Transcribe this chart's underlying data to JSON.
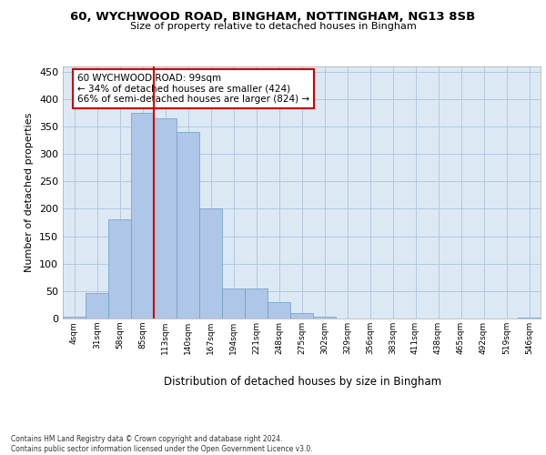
{
  "title_line1": "60, WYCHWOOD ROAD, BINGHAM, NOTTINGHAM, NG13 8SB",
  "title_line2": "Size of property relative to detached houses in Bingham",
  "xlabel": "Distribution of detached houses by size in Bingham",
  "ylabel": "Number of detached properties",
  "bar_labels": [
    "4sqm",
    "31sqm",
    "58sqm",
    "85sqm",
    "113sqm",
    "140sqm",
    "167sqm",
    "194sqm",
    "221sqm",
    "248sqm",
    "275sqm",
    "302sqm",
    "329sqm",
    "356sqm",
    "383sqm",
    "411sqm",
    "438sqm",
    "465sqm",
    "492sqm",
    "519sqm",
    "546sqm"
  ],
  "bar_values": [
    3,
    47,
    180,
    375,
    365,
    340,
    200,
    55,
    55,
    30,
    10,
    3,
    0,
    0,
    0,
    0,
    0,
    0,
    0,
    0,
    1
  ],
  "bar_color": "#aec6e8",
  "bar_edgecolor": "#6a9ec5",
  "vline_color": "#cc0000",
  "vline_x": 3.5,
  "annotation_text": "60 WYCHWOOD ROAD: 99sqm\n← 34% of detached houses are smaller (424)\n66% of semi-detached houses are larger (824) →",
  "annotation_box_edgecolor": "#cc0000",
  "annotation_box_facecolor": "#ffffff",
  "footer_text": "Contains HM Land Registry data © Crown copyright and database right 2024.\nContains public sector information licensed under the Open Government Licence v3.0.",
  "ylim": [
    0,
    460
  ],
  "yticks": [
    0,
    50,
    100,
    150,
    200,
    250,
    300,
    350,
    400,
    450
  ],
  "background_color": "#ffffff",
  "plot_bg_color": "#dce9f5",
  "grid_color": "#b0c8e0"
}
